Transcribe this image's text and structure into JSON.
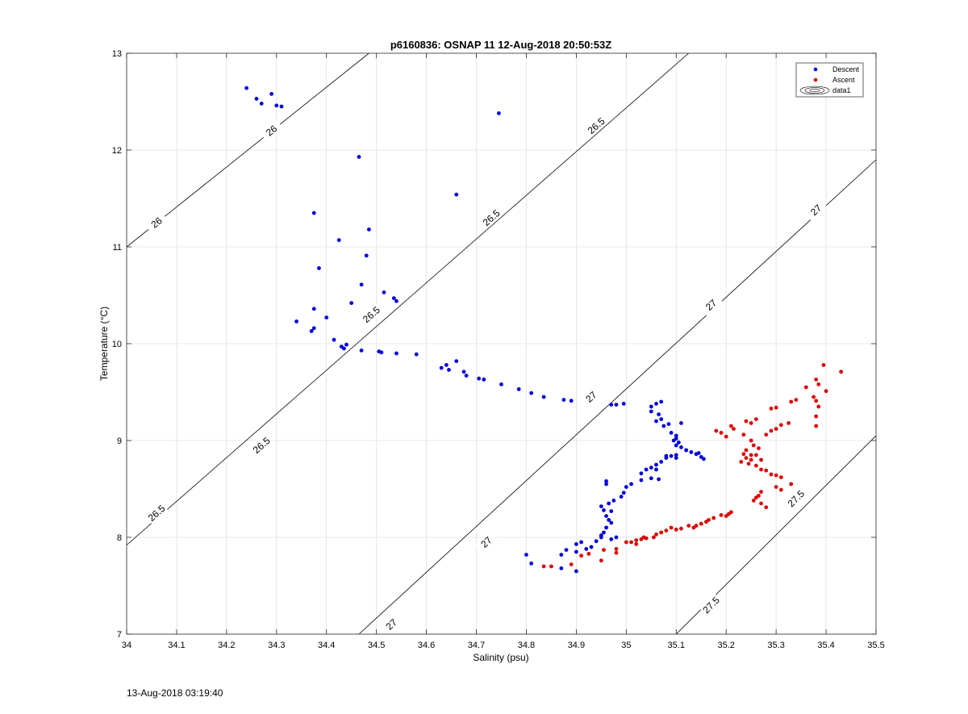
{
  "footer_timestamp": "13-Aug-2018 03:19:40",
  "chart_data": {
    "type": "scatter",
    "title": "p6160836: OSNAP 11 12-Aug-2018 20:50:53Z",
    "xlabel": "Salinity (psu)",
    "ylabel": "Temperature (°C)",
    "xlim": [
      34,
      35.5
    ],
    "ylim": [
      7,
      13
    ],
    "xticks": [
      "34",
      "34.1",
      "34.2",
      "34.3",
      "34.4",
      "34.5",
      "34.6",
      "34.7",
      "34.8",
      "34.9",
      "35",
      "35.1",
      "35.2",
      "35.3",
      "35.4",
      "35.5"
    ],
    "yticks": [
      "7",
      "8",
      "9",
      "10",
      "11",
      "12",
      "13"
    ],
    "grid": true,
    "legend_position": "top-right",
    "legend": [
      "Descent",
      "Ascent",
      "data1"
    ],
    "colors": {
      "Descent": "#0000dd",
      "Ascent": "#dd0000",
      "contour": "#000000",
      "grid": "#e0e0e0"
    },
    "contours": [
      {
        "level": 26,
        "points": [
          [
            34.0,
            11.0
          ],
          [
            34.485,
            13.0
          ]
        ],
        "labels": [
          [
            34.06,
            11.25
          ],
          [
            34.29,
            12.2
          ]
        ]
      },
      {
        "level": 26.5,
        "points": [
          [
            34.0,
            7.92
          ],
          [
            35.125,
            13.0
          ]
        ],
        "labels": [
          [
            34.06,
            8.25
          ],
          [
            34.27,
            8.95
          ],
          [
            34.49,
            10.3
          ],
          [
            34.73,
            11.3
          ],
          [
            34.94,
            12.25
          ]
        ]
      },
      {
        "level": 27,
        "points": [
          [
            34.465,
            7.0
          ],
          [
            35.5,
            11.9
          ]
        ],
        "labels": [
          [
            34.53,
            7.1
          ],
          [
            34.72,
            7.95
          ],
          [
            34.93,
            9.45
          ],
          [
            35.17,
            10.4
          ],
          [
            35.38,
            11.38
          ]
        ]
      },
      {
        "level": 27.5,
        "points": [
          [
            35.1,
            7.0
          ],
          [
            35.5,
            9.05
          ]
        ],
        "labels": [
          [
            35.17,
            7.3
          ],
          [
            35.34,
            8.4
          ]
        ]
      }
    ],
    "series": [
      {
        "name": "Descent",
        "points": [
          [
            34.24,
            12.64
          ],
          [
            34.26,
            12.53
          ],
          [
            34.27,
            12.48
          ],
          [
            34.29,
            12.58
          ],
          [
            34.3,
            12.46
          ],
          [
            34.31,
            12.45
          ],
          [
            34.745,
            12.38
          ],
          [
            34.465,
            11.93
          ],
          [
            34.66,
            11.54
          ],
          [
            34.375,
            11.35
          ],
          [
            34.425,
            11.07
          ],
          [
            34.485,
            11.18
          ],
          [
            34.48,
            10.91
          ],
          [
            34.385,
            10.78
          ],
          [
            34.47,
            10.61
          ],
          [
            34.515,
            10.53
          ],
          [
            34.535,
            10.47
          ],
          [
            34.54,
            10.44
          ],
          [
            34.45,
            10.42
          ],
          [
            34.375,
            10.36
          ],
          [
            34.4,
            10.27
          ],
          [
            34.34,
            10.23
          ],
          [
            34.375,
            10.16
          ],
          [
            34.37,
            10.13
          ],
          [
            34.415,
            10.04
          ],
          [
            34.43,
            9.97
          ],
          [
            34.44,
            9.99
          ],
          [
            34.435,
            9.95
          ],
          [
            34.47,
            9.93
          ],
          [
            34.505,
            9.92
          ],
          [
            34.51,
            9.91
          ],
          [
            34.54,
            9.9
          ],
          [
            34.58,
            9.89
          ],
          [
            34.66,
            9.82
          ],
          [
            34.64,
            9.78
          ],
          [
            34.63,
            9.75
          ],
          [
            34.645,
            9.73
          ],
          [
            34.675,
            9.71
          ],
          [
            34.68,
            9.67
          ],
          [
            34.705,
            9.64
          ],
          [
            34.715,
            9.63
          ],
          [
            34.75,
            9.58
          ],
          [
            34.785,
            9.53
          ],
          [
            34.81,
            9.49
          ],
          [
            34.835,
            9.45
          ],
          [
            34.875,
            9.42
          ],
          [
            34.89,
            9.41
          ],
          [
            34.97,
            9.37
          ],
          [
            34.98,
            9.37
          ],
          [
            34.995,
            9.38
          ],
          [
            35.05,
            9.35
          ],
          [
            35.06,
            9.38
          ],
          [
            35.07,
            9.4
          ],
          [
            35.05,
            9.3
          ],
          [
            35.065,
            9.27
          ],
          [
            35.07,
            9.22
          ],
          [
            35.06,
            9.2
          ],
          [
            35.075,
            9.15
          ],
          [
            35.085,
            9.17
          ],
          [
            35.11,
            9.18
          ],
          [
            35.1,
            9.05
          ],
          [
            35.095,
            9.0
          ],
          [
            35.1,
            8.95
          ],
          [
            35.11,
            8.93
          ],
          [
            35.12,
            8.9
          ],
          [
            35.14,
            8.86
          ],
          [
            35.15,
            8.83
          ],
          [
            35.155,
            8.81
          ],
          [
            35.145,
            8.87
          ],
          [
            35.13,
            8.88
          ],
          [
            35.1,
            8.85
          ],
          [
            35.08,
            8.84
          ],
          [
            35.07,
            8.78
          ],
          [
            35.06,
            8.75
          ],
          [
            35.05,
            8.72
          ],
          [
            35.04,
            8.7
          ],
          [
            35.03,
            8.66
          ],
          [
            35.05,
            8.61
          ],
          [
            35.065,
            8.6
          ],
          [
            35.03,
            8.59
          ],
          [
            35.01,
            8.55
          ],
          [
            35.0,
            8.52
          ],
          [
            34.995,
            8.46
          ],
          [
            34.99,
            8.42
          ],
          [
            34.96,
            8.55
          ],
          [
            34.96,
            8.58
          ],
          [
            34.975,
            8.38
          ],
          [
            34.965,
            8.35
          ],
          [
            34.95,
            8.32
          ],
          [
            34.955,
            8.28
          ],
          [
            34.97,
            8.27
          ],
          [
            34.96,
            8.22
          ],
          [
            34.965,
            8.18
          ],
          [
            34.97,
            8.15
          ],
          [
            34.96,
            8.1
          ],
          [
            34.955,
            8.05
          ],
          [
            34.95,
            8.02
          ],
          [
            34.97,
            7.98
          ],
          [
            34.94,
            7.96
          ],
          [
            34.91,
            7.95
          ],
          [
            34.9,
            7.93
          ],
          [
            34.88,
            7.87
          ],
          [
            34.9,
            7.85
          ],
          [
            34.87,
            7.82
          ],
          [
            34.8,
            7.82
          ],
          [
            34.81,
            7.73
          ],
          [
            34.87,
            7.68
          ],
          [
            34.9,
            7.65
          ],
          [
            34.92,
            7.88
          ],
          [
            34.93,
            7.9
          ],
          [
            34.95,
            8.0
          ],
          [
            34.98,
            8.0
          ],
          [
            35.09,
            9.08
          ],
          [
            35.1,
            9.02
          ],
          [
            35.105,
            8.98
          ],
          [
            35.12,
            8.9
          ],
          [
            35.09,
            8.84
          ],
          [
            35.08,
            8.82
          ],
          [
            35.1,
            8.82
          ],
          [
            35.06,
            8.7
          ]
        ]
      },
      {
        "name": "Ascent",
        "points": [
          [
            35.395,
            9.78
          ],
          [
            35.43,
            9.71
          ],
          [
            35.38,
            9.63
          ],
          [
            35.385,
            9.58
          ],
          [
            35.36,
            9.55
          ],
          [
            35.4,
            9.51
          ],
          [
            35.34,
            9.42
          ],
          [
            35.33,
            9.4
          ],
          [
            35.375,
            9.45
          ],
          [
            35.38,
            9.41
          ],
          [
            35.385,
            9.35
          ],
          [
            35.3,
            9.34
          ],
          [
            35.29,
            9.33
          ],
          [
            35.38,
            9.25
          ],
          [
            35.38,
            9.15
          ],
          [
            35.325,
            9.18
          ],
          [
            35.31,
            9.16
          ],
          [
            35.26,
            9.22
          ],
          [
            35.25,
            9.18
          ],
          [
            35.24,
            9.2
          ],
          [
            35.21,
            9.15
          ],
          [
            35.215,
            9.12
          ],
          [
            35.19,
            9.08
          ],
          [
            35.2,
            9.04
          ],
          [
            35.18,
            9.1
          ],
          [
            35.235,
            9.06
          ],
          [
            35.25,
            9.0
          ],
          [
            35.255,
            8.95
          ],
          [
            35.265,
            8.92
          ],
          [
            35.24,
            8.9
          ],
          [
            35.235,
            8.86
          ],
          [
            35.26,
            8.85
          ],
          [
            35.25,
            8.8
          ],
          [
            35.245,
            8.76
          ],
          [
            35.26,
            8.74
          ],
          [
            35.27,
            8.7
          ],
          [
            35.28,
            8.69
          ],
          [
            35.29,
            8.65
          ],
          [
            35.3,
            8.64
          ],
          [
            35.31,
            8.62
          ],
          [
            35.33,
            8.55
          ],
          [
            35.3,
            8.52
          ],
          [
            35.31,
            8.49
          ],
          [
            35.27,
            8.47
          ],
          [
            35.265,
            8.43
          ],
          [
            35.26,
            8.41
          ],
          [
            35.255,
            8.38
          ],
          [
            35.27,
            8.35
          ],
          [
            35.28,
            8.31
          ],
          [
            35.29,
            9.1
          ],
          [
            35.28,
            9.06
          ],
          [
            35.3,
            9.12
          ],
          [
            35.27,
            8.8
          ],
          [
            35.25,
            8.85
          ],
          [
            35.24,
            8.82
          ],
          [
            35.23,
            8.78
          ],
          [
            35.21,
            8.26
          ],
          [
            35.205,
            8.24
          ],
          [
            35.2,
            8.22
          ],
          [
            35.19,
            8.23
          ],
          [
            35.175,
            8.2
          ],
          [
            35.165,
            8.18
          ],
          [
            35.16,
            8.16
          ],
          [
            35.15,
            8.14
          ],
          [
            35.14,
            8.12
          ],
          [
            35.135,
            8.1
          ],
          [
            35.125,
            8.12
          ],
          [
            35.11,
            8.09
          ],
          [
            35.1,
            8.08
          ],
          [
            35.09,
            8.1
          ],
          [
            35.08,
            8.07
          ],
          [
            35.07,
            8.05
          ],
          [
            35.06,
            8.03
          ],
          [
            35.055,
            8.0
          ],
          [
            35.04,
            7.99
          ],
          [
            35.035,
            8.0
          ],
          [
            35.03,
            7.98
          ],
          [
            35.02,
            7.97
          ],
          [
            35.02,
            7.93
          ],
          [
            35.01,
            7.95
          ],
          [
            34.98,
            7.88
          ],
          [
            34.98,
            7.84
          ],
          [
            34.955,
            7.87
          ],
          [
            34.925,
            7.83
          ],
          [
            34.91,
            7.81
          ],
          [
            34.89,
            7.72
          ],
          [
            34.85,
            7.7
          ],
          [
            34.835,
            7.7
          ],
          [
            34.95,
            7.76
          ],
          [
            35.0,
            7.95
          ]
        ]
      }
    ]
  }
}
